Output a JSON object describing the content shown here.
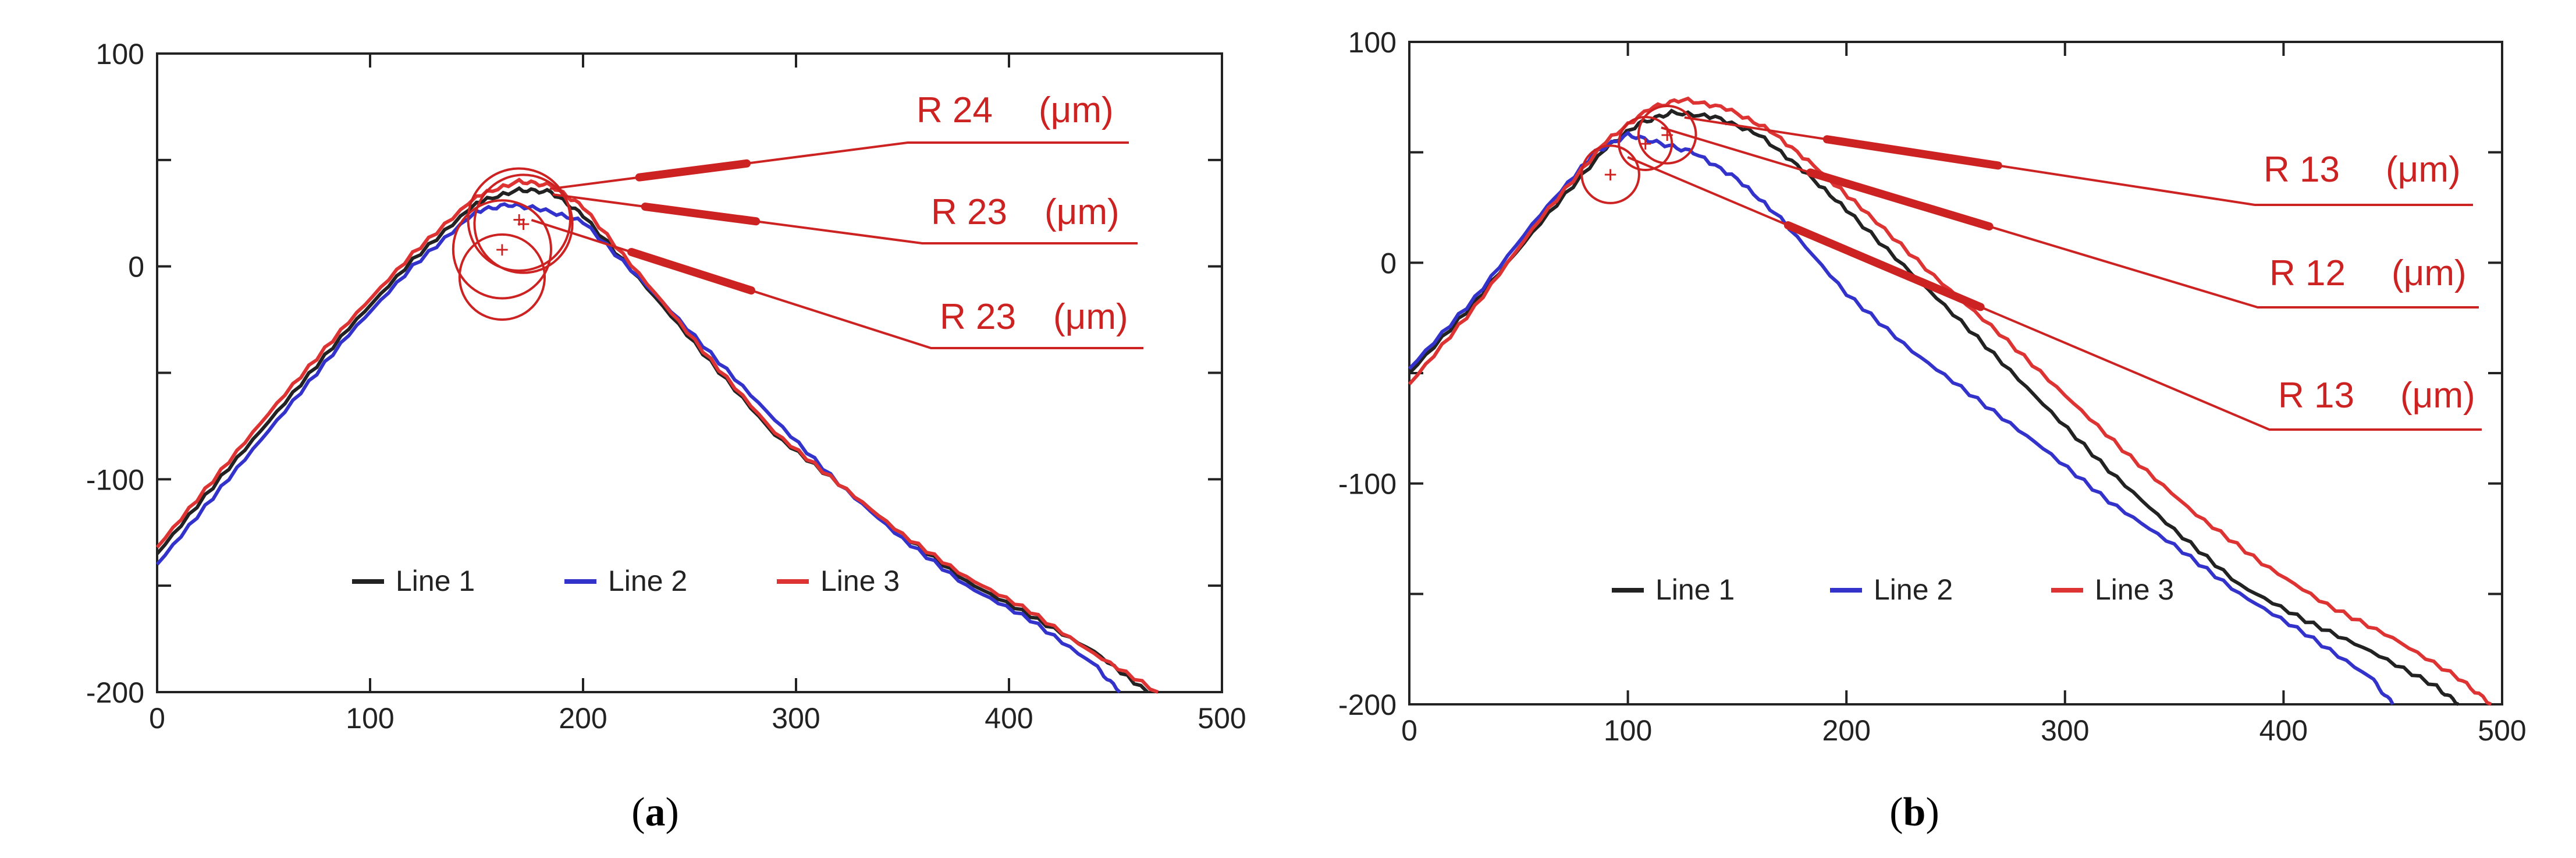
{
  "chart_data": [
    {
      "type": "line",
      "panel": "a",
      "caption": {
        "open": "(",
        "letter": "a",
        "close": ")"
      },
      "xlim": [
        0,
        500
      ],
      "ylim": [
        -200,
        100
      ],
      "x_ticks": [
        0,
        100,
        200,
        300,
        400,
        500
      ],
      "y_ticks": [
        100,
        0,
        -100,
        -200
      ],
      "legend": [
        "Line 1",
        "Line 2",
        "Line 3"
      ],
      "legend_position": "bottom-center",
      "series": [
        {
          "name": "Line 1",
          "color": "#222222",
          "x": [
            0,
            30,
            60,
            90,
            120,
            150,
            170,
            185,
            200,
            230,
            260,
            290,
            320,
            350,
            380,
            410,
            440,
            465
          ],
          "y": [
            -135,
            -99,
            -64,
            -29,
            3,
            30,
            36,
            35,
            24,
            -10,
            -45,
            -79,
            -102,
            -126,
            -148,
            -164,
            -181,
            -200
          ]
        },
        {
          "name": "Line 2",
          "color": "#3333cc",
          "x": [
            0,
            30,
            60,
            90,
            120,
            150,
            165,
            180,
            200,
            230,
            260,
            290,
            320,
            350,
            380,
            410,
            440,
            452
          ],
          "y": [
            -140,
            -104,
            -68,
            -32,
            0,
            26,
            29,
            27,
            21,
            -9,
            -41,
            -72,
            -102,
            -128,
            -150,
            -166,
            -187,
            -200
          ]
        },
        {
          "name": "Line 3",
          "color": "#dd3333",
          "x": [
            0,
            30,
            60,
            90,
            120,
            150,
            170,
            185,
            200,
            230,
            260,
            290,
            320,
            350,
            380,
            410,
            440,
            470
          ],
          "y": [
            -132,
            -96,
            -60,
            -26,
            6,
            33,
            40,
            38,
            28,
            -8,
            -44,
            -78,
            -102,
            -126,
            -146,
            -162,
            -182,
            -200
          ]
        }
      ],
      "fits": [
        {
          "label": "R 24",
          "unit": "(μm)",
          "color": "#cc2222",
          "center": [
            170,
            22
          ],
          "radius": 24,
          "extra_circles": []
        },
        {
          "label": "R 23",
          "unit": "(μm)",
          "color": "#cc2222",
          "center": [
            172,
            20
          ],
          "radius": 23,
          "extra_circles": []
        },
        {
          "label": "R 23",
          "unit": "(μm)",
          "color": "#cc2222",
          "center": [
            162,
            8
          ],
          "radius": 23,
          "extra_circles": [
            [
              162,
              -5,
              20
            ]
          ]
        }
      ]
    },
    {
      "type": "line",
      "panel": "b",
      "caption": {
        "open": "(",
        "letter": "b",
        "close": ")"
      },
      "xlim": [
        0,
        500
      ],
      "ylim": [
        -200,
        100
      ],
      "x_ticks": [
        0,
        100,
        200,
        300,
        400,
        500
      ],
      "y_ticks": [
        100,
        0,
        -100,
        -200
      ],
      "legend": [
        "Line 1",
        "Line 2",
        "Line 3"
      ],
      "legend_position": "bottom-center",
      "series": [
        {
          "name": "Line 1",
          "color": "#222222",
          "x": [
            0,
            30,
            60,
            90,
            105,
            120,
            140,
            160,
            180,
            200,
            230,
            260,
            290,
            320,
            350,
            380,
            410,
            440,
            470,
            480
          ],
          "y": [
            -50,
            -18,
            18,
            52,
            63,
            68,
            66,
            58,
            42,
            24,
            -5,
            -34,
            -64,
            -94,
            -121,
            -146,
            -162,
            -176,
            -192,
            -200
          ]
        },
        {
          "name": "Line 2",
          "color": "#3333cc",
          "x": [
            0,
            30,
            60,
            85,
            100,
            115,
            130,
            150,
            170,
            200,
            230,
            260,
            290,
            320,
            350,
            380,
            410,
            440,
            450
          ],
          "y": [
            -48,
            -16,
            22,
            50,
            58,
            54,
            50,
            38,
            20,
            -14,
            -40,
            -62,
            -84,
            -108,
            -128,
            -150,
            -168,
            -188,
            -200
          ]
        },
        {
          "name": "Line 3",
          "color": "#dd3333",
          "x": [
            0,
            30,
            60,
            90,
            110,
            125,
            145,
            165,
            185,
            210,
            240,
            270,
            300,
            330,
            360,
            390,
            420,
            450,
            480,
            495
          ],
          "y": [
            -55,
            -20,
            20,
            55,
            70,
            74,
            70,
            60,
            44,
            22,
            -6,
            -32,
            -60,
            -88,
            -114,
            -136,
            -155,
            -170,
            -188,
            -200
          ]
        }
      ],
      "fits": [
        {
          "label": "R 13",
          "unit": "(μm)",
          "color": "#cc2222",
          "center": [
            118,
            58
          ],
          "radius": 13,
          "extra_circles": []
        },
        {
          "label": "R 12",
          "unit": "(μm)",
          "color": "#cc2222",
          "center": [
            108,
            54
          ],
          "radius": 12,
          "extra_circles": []
        },
        {
          "label": "R 13",
          "unit": "(μm)",
          "color": "#cc2222",
          "center": [
            92,
            40
          ],
          "radius": 13,
          "extra_circles": []
        }
      ]
    }
  ]
}
